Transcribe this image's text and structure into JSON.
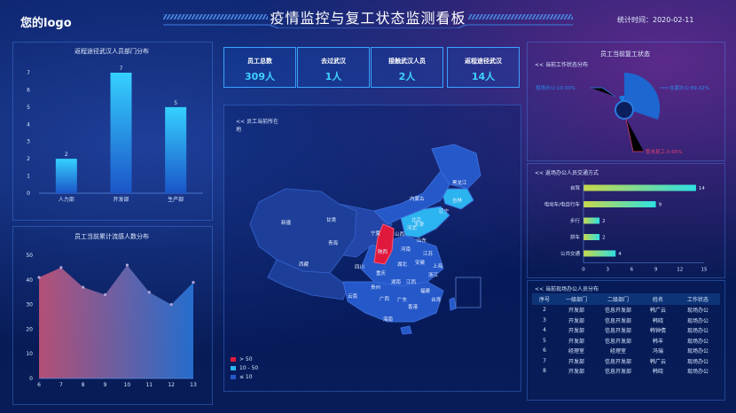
{
  "header": {
    "logo": "您的logo",
    "title": "疫情监控与复工状态监测看板",
    "stat_time": "统计时间：2020-02-11"
  },
  "cards": [
    {
      "label": "员工总数",
      "value": "309人"
    },
    {
      "label": "去过武汉",
      "value": "1人"
    },
    {
      "label": "接触武汉人员",
      "value": "2人"
    },
    {
      "label": "返程途径武汉",
      "value": "14人"
    }
  ],
  "left_top": {
    "title": "返程途径武汉人员部门分布",
    "chart_data": {
      "type": "bar",
      "categories": [
        "人力部",
        "开发部",
        "生产部"
      ],
      "values": [
        2,
        7,
        5
      ],
      "ylim": [
        0,
        7
      ],
      "yticks": [
        0,
        1,
        2,
        3,
        4,
        5,
        6,
        7
      ]
    }
  },
  "left_bottom": {
    "title": "员工当前累计流感人数分布",
    "chart_data": {
      "type": "area",
      "x": [
        6,
        7,
        8,
        9,
        10,
        11,
        12,
        13
      ],
      "values": [
        41,
        45,
        37,
        34,
        46,
        35,
        30,
        39
      ],
      "ylim": [
        0,
        50
      ],
      "yticks": [
        0,
        10,
        20,
        30,
        40,
        50
      ]
    }
  },
  "map": {
    "subtitle_line1": "<< 员工当前所在",
    "subtitle_line2": "地",
    "provinces": [
      "黑龙江",
      "吉林",
      "辽宁",
      "内蒙古",
      "北京",
      "天津",
      "河北",
      "山西",
      "山东",
      "宁夏",
      "甘肃",
      "新疆",
      "青海",
      "西藏",
      "陕西",
      "河南",
      "江苏",
      "安徽",
      "湖北",
      "上海",
      "四川",
      "重庆",
      "浙江",
      "湖南",
      "江西",
      "贵州",
      "福建",
      "台湾",
      "云南",
      "广西",
      "广东",
      "香港",
      "海南"
    ],
    "legend": [
      {
        "label": "> 50",
        "color": "#e0193c"
      },
      {
        "label": "10 - 50",
        "color": "#2bb4f0"
      },
      {
        "label": "≤ 10",
        "color": "#2558c9"
      }
    ]
  },
  "right_top": {
    "title": "员工当前复工状态",
    "subtitle": "<< 当前工作状态分布",
    "chart_data": {
      "type": "pie",
      "slices": [
        {
          "label": "现场办公:10.03%",
          "value": 10.03,
          "color": "#1a7fe0"
        },
        {
          "label": "在家办公:89.32%",
          "value": 89.32,
          "color": "#1e66d0"
        },
        {
          "label": "暂未复工:0.65%",
          "value": 0.65,
          "color": "#e04070"
        }
      ]
    }
  },
  "right_mid": {
    "subtitle": "<< 返场办公人员交通方式",
    "chart_data": {
      "type": "bar",
      "categories": [
        "自驾",
        "电动车/电自行车",
        "步行",
        "拼车",
        "公共交通"
      ],
      "values": [
        14,
        9,
        2,
        2,
        4
      ],
      "xlim": [
        0,
        15
      ],
      "xticks": [
        0,
        3,
        6,
        9,
        12,
        15
      ]
    }
  },
  "right_bottom": {
    "subtitle": "<< 当前现场办公人员分布",
    "columns": [
      "序号",
      "一级部门",
      "二级部门",
      "姓名",
      "工作状态"
    ],
    "rows": [
      [
        "2",
        "开发部",
        "信息开发部",
        "韩广云",
        "现场办公"
      ],
      [
        "3",
        "开发部",
        "信息开发部",
        "韩晓",
        "现场办公"
      ],
      [
        "4",
        "开发部",
        "信息开发部",
        "韩钟倩",
        "现场办公"
      ],
      [
        "5",
        "开发部",
        "信息开发部",
        "韩丰",
        "现场办公"
      ],
      [
        "6",
        "经理室",
        "经理室",
        "冯瑞",
        "现场办公"
      ],
      [
        "7",
        "开发部",
        "信息开发部",
        "韩广云",
        "现场办公"
      ],
      [
        "8",
        "开发部",
        "信息开发部",
        "韩晓",
        "现场办公"
      ]
    ]
  }
}
